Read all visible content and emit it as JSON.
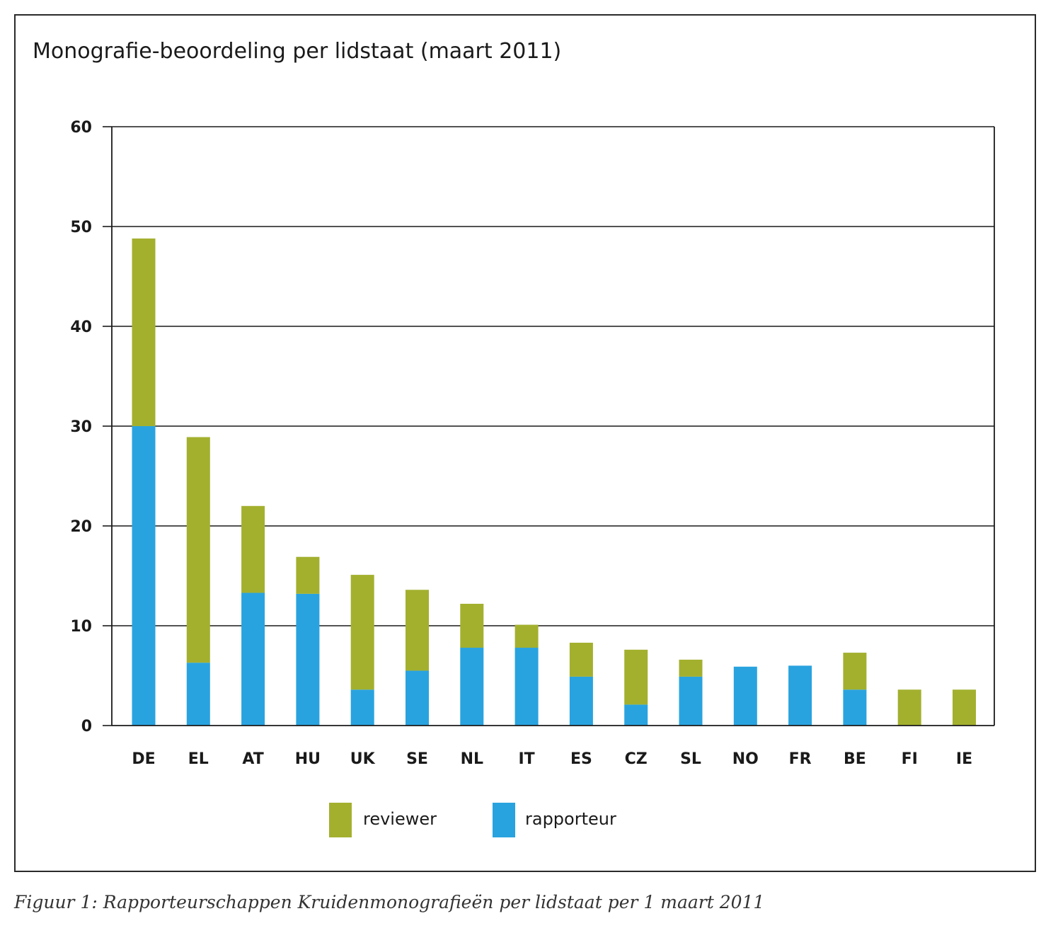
{
  "chart_data": {
    "type": "bar",
    "stacked": true,
    "title": "Monografie-beoordeling per lidstaat (maart 2011)",
    "categories": [
      "DE",
      "EL",
      "AT",
      "HU",
      "UK",
      "SE",
      "NL",
      "IT",
      "ES",
      "CZ",
      "SL",
      "NO",
      "FR",
      "BE",
      "FI",
      "IE"
    ],
    "series": [
      {
        "name": "rapporteur",
        "color": "#29a3df",
        "values": [
          30,
          6.3,
          13.3,
          13.2,
          3.6,
          5.5,
          7.8,
          7.8,
          4.9,
          2.1,
          4.9,
          5.9,
          6.0,
          3.6,
          0,
          0
        ]
      },
      {
        "name": "reviewer",
        "color": "#a3b02e",
        "values": [
          18.8,
          22.6,
          8.7,
          3.7,
          11.5,
          8.1,
          4.4,
          2.3,
          3.4,
          5.5,
          1.7,
          0,
          0,
          3.7,
          3.6,
          3.6
        ]
      }
    ],
    "ylim": [
      0,
      60
    ],
    "yticks": [
      0,
      10,
      20,
      30,
      40,
      50,
      60
    ],
    "grid": true,
    "legend": {
      "position": "bottom",
      "entries": [
        {
          "label": "reviewer",
          "color": "#a3b02e"
        },
        {
          "label": "rapporteur",
          "color": "#29a3df"
        }
      ]
    },
    "xlabel": "",
    "ylabel": ""
  },
  "caption": "Figuur 1: Rapporteurschappen Kruidenmonografieën per lidstaat per 1 maart 2011"
}
